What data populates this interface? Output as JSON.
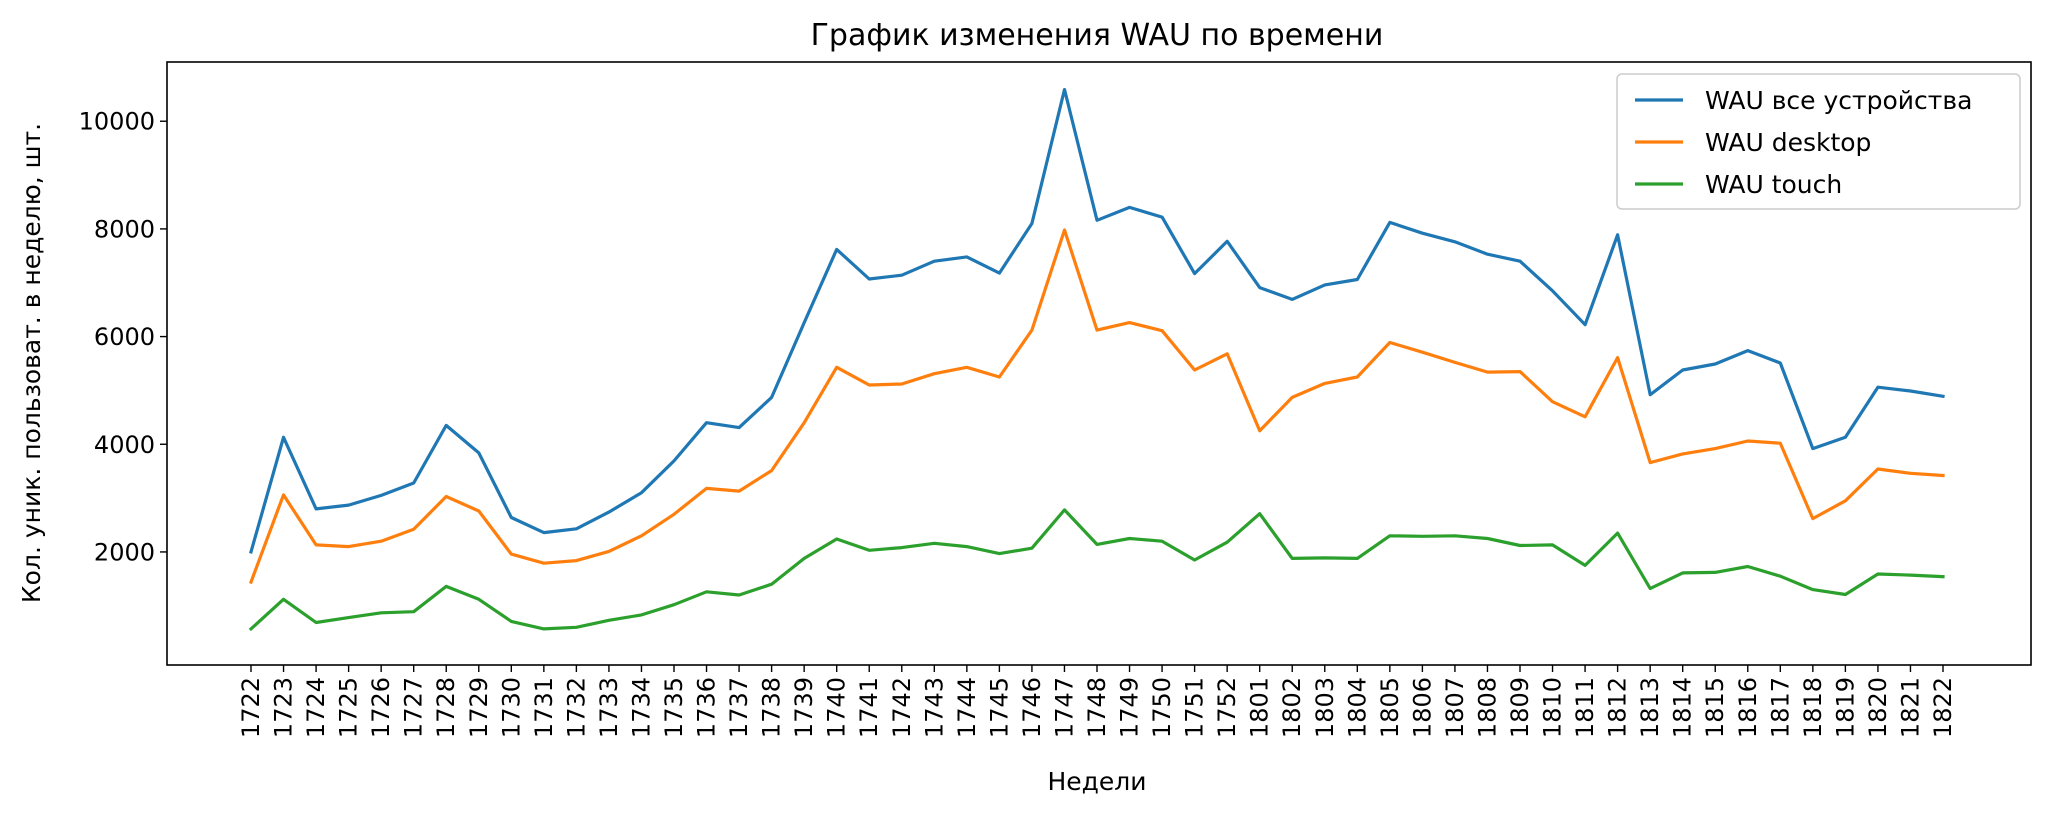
{
  "chart_data": {
    "type": "line",
    "title": "График изменения WAU по времени",
    "xlabel": "Недели",
    "ylabel": "Кол. уник. пользоват. в неделю, шт.",
    "categories": [
      "1722",
      "1723",
      "1724",
      "1725",
      "1726",
      "1727",
      "1728",
      "1729",
      "1730",
      "1731",
      "1732",
      "1733",
      "1734",
      "1735",
      "1736",
      "1737",
      "1738",
      "1739",
      "1740",
      "1741",
      "1742",
      "1743",
      "1744",
      "1745",
      "1746",
      "1747",
      "1748",
      "1749",
      "1750",
      "1751",
      "1752",
      "1801",
      "1802",
      "1803",
      "1804",
      "1805",
      "1806",
      "1807",
      "1808",
      "1809",
      "1810",
      "1811",
      "1812",
      "1813",
      "1814",
      "1815",
      "1816",
      "1817",
      "1818",
      "1819",
      "1820",
      "1821",
      "1822"
    ],
    "ylim": [
      -100,
      11100
    ],
    "yticks": [
      2000,
      4000,
      6000,
      8000,
      10000
    ],
    "grid": false,
    "legend_position": "top-right",
    "series": [
      {
        "name": "WAU все устройства",
        "color": "#1f77b4",
        "values": [
          2000,
          4130,
          2800,
          2870,
          3050,
          3280,
          4350,
          3840,
          2640,
          2360,
          2430,
          2740,
          3100,
          3690,
          4400,
          4310,
          4870,
          6260,
          7620,
          7070,
          7140,
          7400,
          7480,
          7180,
          8100,
          10590,
          8160,
          8400,
          8220,
          7170,
          7770,
          6910,
          6690,
          6960,
          7060,
          8120,
          7920,
          7760,
          7530,
          7400,
          6850,
          6220,
          7890,
          4920,
          5380,
          5490,
          5740,
          5510,
          3920,
          4130,
          5060,
          4990,
          4890
        ]
      },
      {
        "name": "WAU desktop",
        "color": "#ff7f0e",
        "values": [
          1440,
          3060,
          2130,
          2100,
          2200,
          2420,
          3030,
          2760,
          1960,
          1790,
          1840,
          2010,
          2300,
          2700,
          3180,
          3130,
          3510,
          4400,
          5430,
          5100,
          5120,
          5310,
          5430,
          5250,
          6120,
          7980,
          6120,
          6260,
          6110,
          5380,
          5680,
          4250,
          4870,
          5130,
          5250,
          5890,
          5710,
          5520,
          5340,
          5350,
          4790,
          4510,
          5610,
          3660,
          3820,
          3920,
          4060,
          4020,
          2620,
          2950,
          3540,
          3460,
          3420
        ]
      },
      {
        "name": "WAU touch",
        "color": "#2ca02c",
        "values": [
          570,
          1120,
          690,
          780,
          870,
          890,
          1360,
          1120,
          710,
          570,
          600,
          730,
          830,
          1020,
          1260,
          1200,
          1400,
          1880,
          2240,
          2030,
          2080,
          2160,
          2100,
          1970,
          2070,
          2780,
          2140,
          2250,
          2200,
          1850,
          2180,
          2710,
          1880,
          1890,
          1880,
          2300,
          2290,
          2300,
          2250,
          2120,
          2130,
          1750,
          2350,
          1320,
          1610,
          1620,
          1730,
          1550,
          1300,
          1210,
          1590,
          1570,
          1540
        ]
      }
    ]
  }
}
